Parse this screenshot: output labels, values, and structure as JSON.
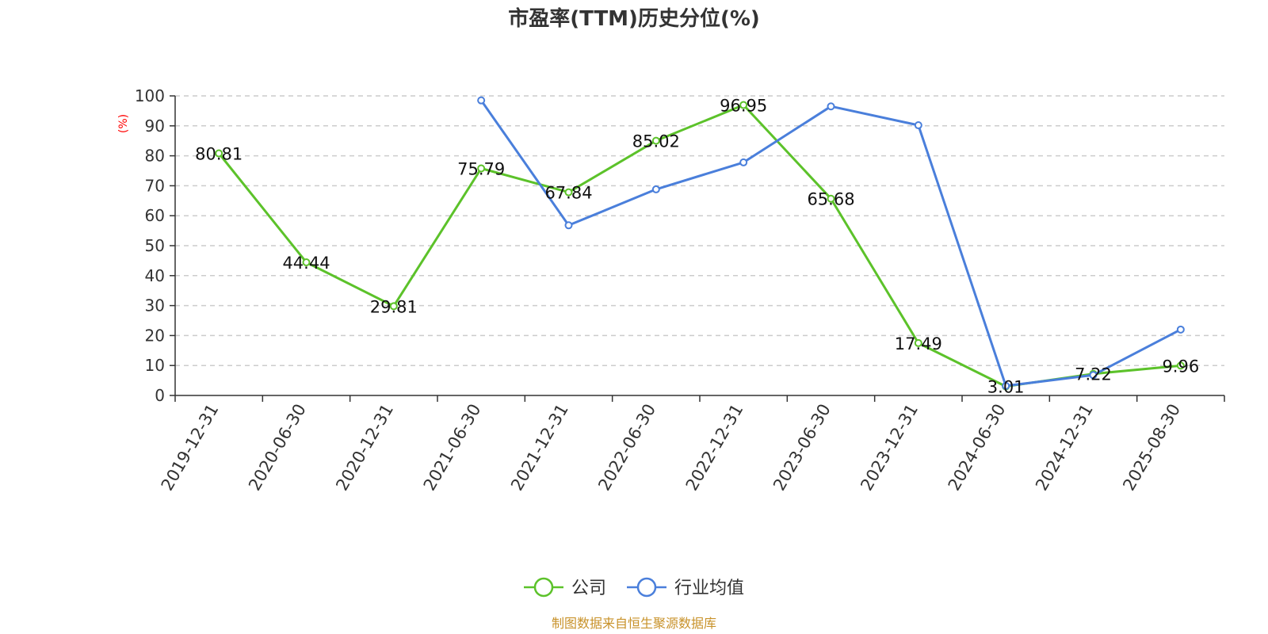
{
  "chart_data": {
    "type": "line",
    "title": "市盈率(TTM)历史分位(%)",
    "ylabel": "(%)",
    "xlabel": "",
    "ylim": [
      0,
      100
    ],
    "yticks": [
      "0",
      "10",
      "20",
      "30",
      "40",
      "50",
      "60",
      "70",
      "80",
      "90",
      "100"
    ],
    "categories": [
      "2019-12-31",
      "2020-06-30",
      "2020-12-31",
      "2021-06-30",
      "2021-12-31",
      "2022-06-30",
      "2022-12-31",
      "2023-06-30",
      "2023-12-31",
      "2024-06-30",
      "2024-12-31",
      "2025-08-30"
    ],
    "grid": true,
    "legend_position": "bottom-center",
    "series": [
      {
        "name": "公司",
        "color": "#5cc22a",
        "values": [
          80.81,
          44.44,
          29.81,
          75.79,
          67.84,
          85.02,
          96.95,
          65.68,
          17.49,
          3.01,
          7.22,
          9.96
        ],
        "labels": [
          "80.81",
          "44.44",
          "29.81",
          "75.79",
          "67.84",
          "85.02",
          "96.95",
          "65.68",
          "17.49",
          "3.01",
          "7.22",
          "9.96"
        ]
      },
      {
        "name": "行业均值",
        "color": "#4a7fdb",
        "values": [
          null,
          null,
          null,
          98.5,
          56.8,
          68.8,
          77.8,
          96.5,
          90.2,
          3.2,
          6.8,
          22.0
        ]
      }
    ]
  },
  "source_text": "制图数据来自恒生聚源数据库"
}
